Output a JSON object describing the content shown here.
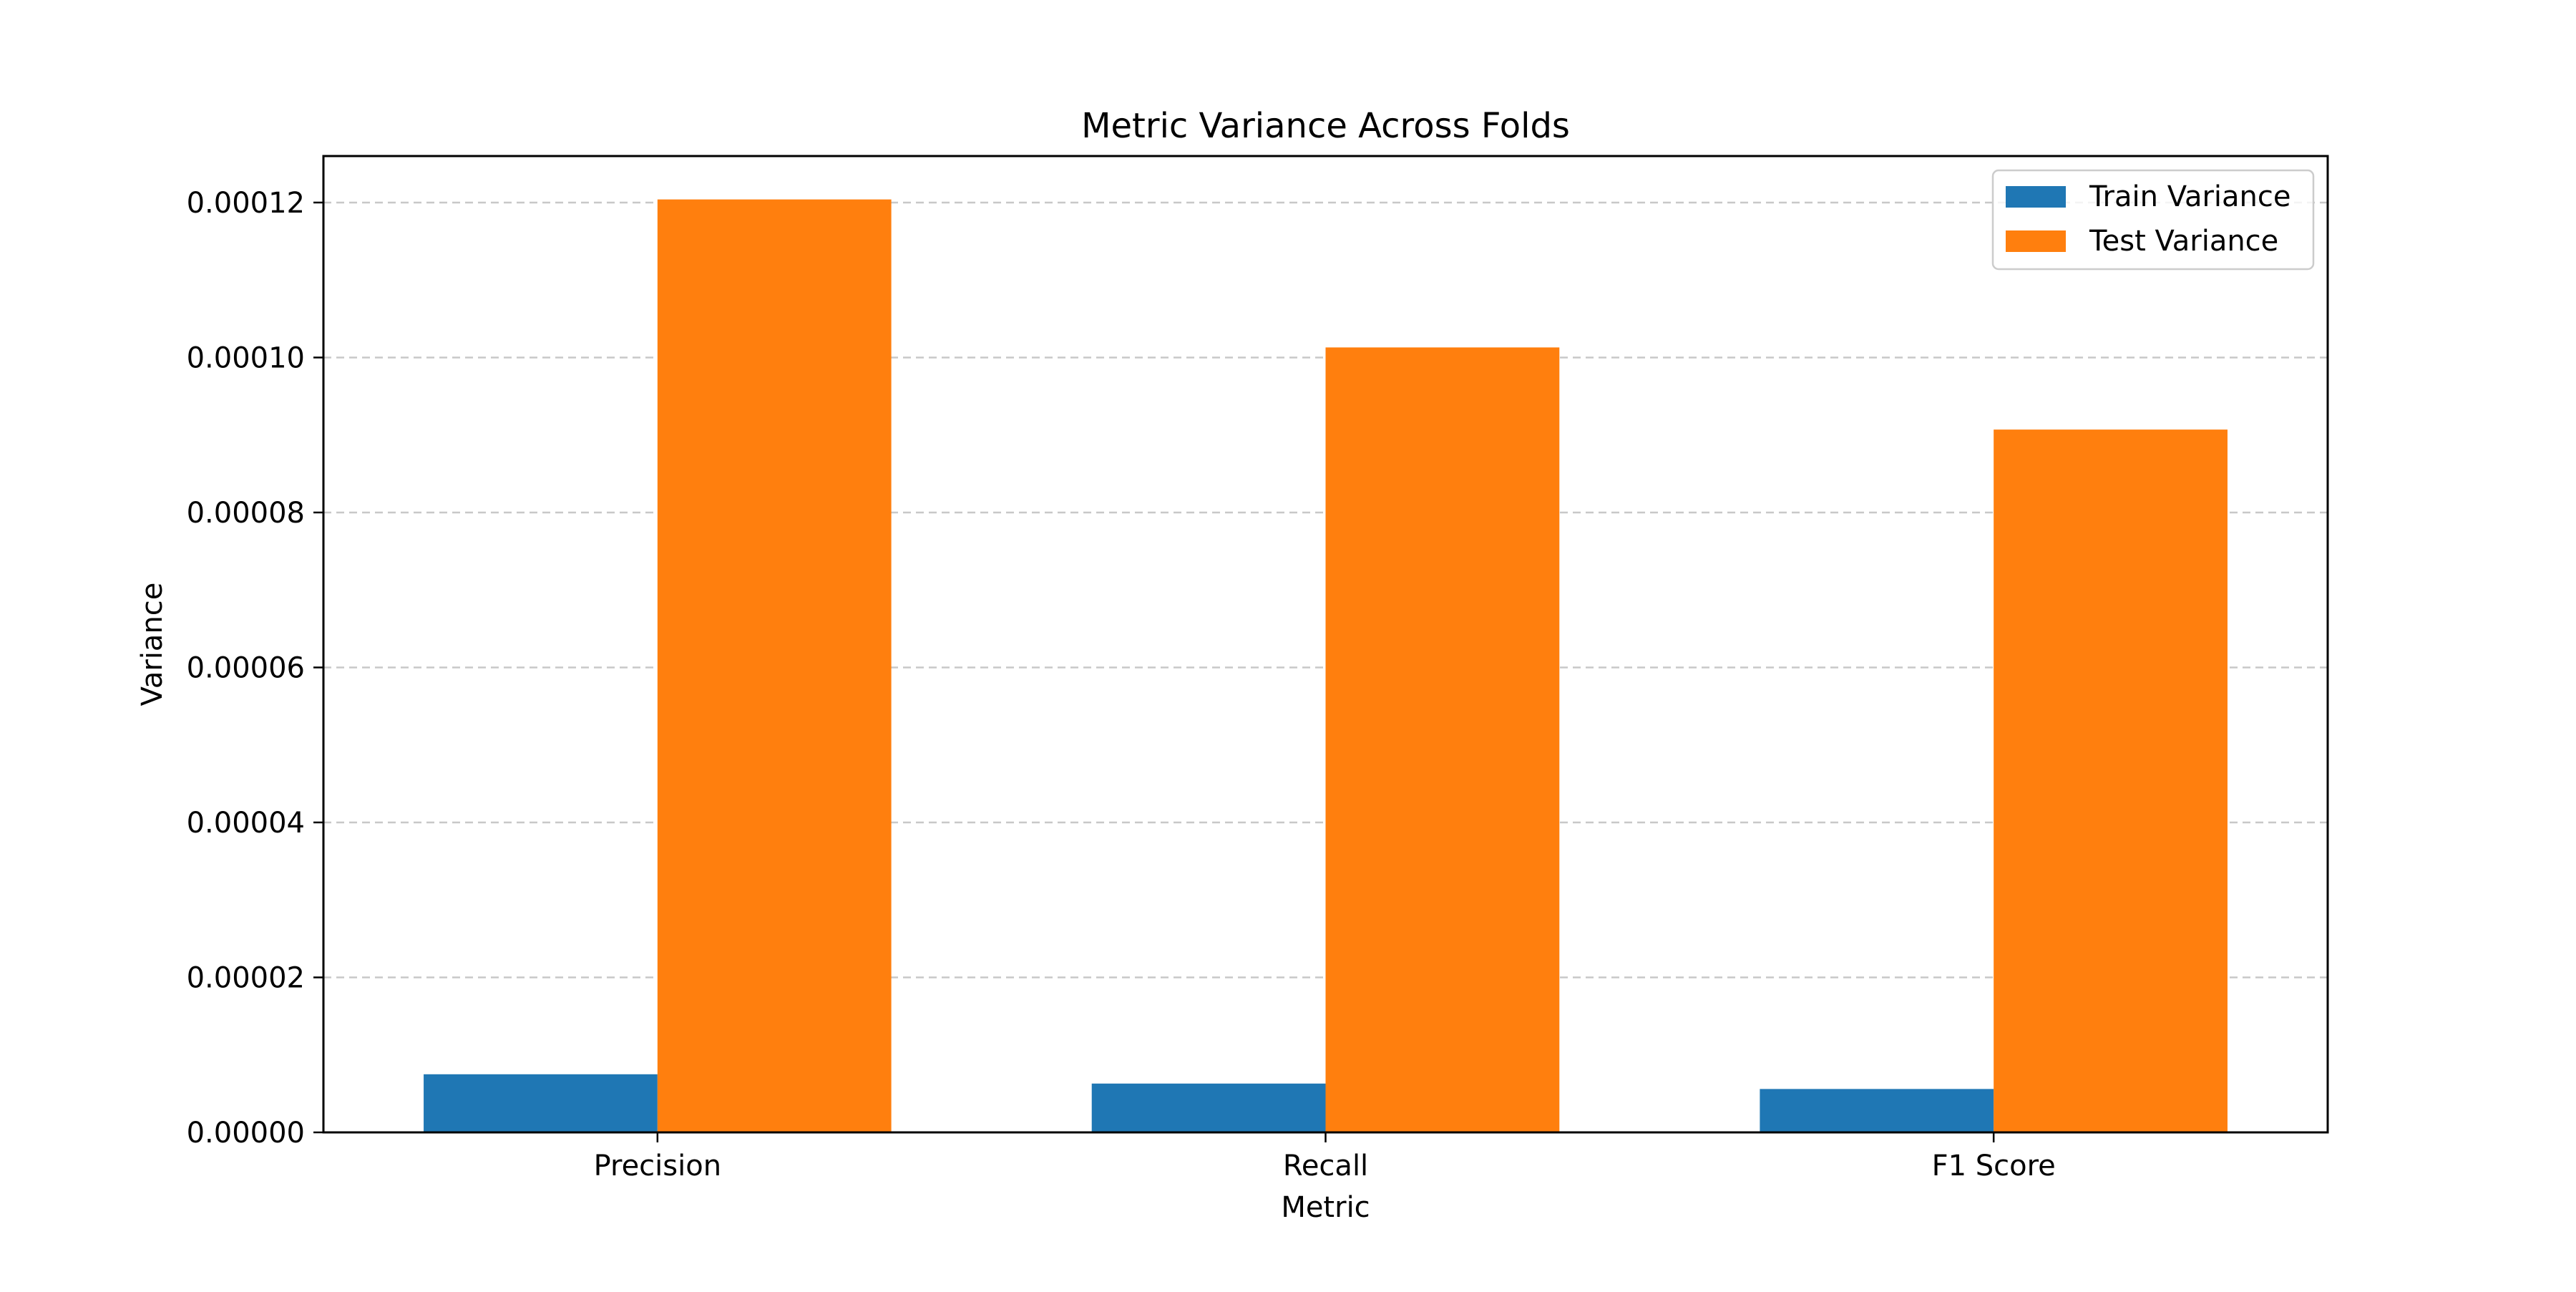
{
  "chart_data": {
    "type": "bar",
    "title": "Metric Variance Across Folds",
    "xlabel": "Metric",
    "ylabel": "Variance",
    "categories": [
      "Precision",
      "Recall",
      "F1 Score"
    ],
    "series": [
      {
        "name": "Train Variance",
        "color": "#1f77b4",
        "values": [
          7.5e-06,
          6.3e-06,
          5.6e-06
        ]
      },
      {
        "name": "Test Variance",
        "color": "#ff7f0e",
        "values": [
          0.0001204,
          0.0001013,
          9.07e-05
        ]
      }
    ],
    "ylim": [
      0,
      0.000126
    ],
    "yticks": [
      0,
      2e-05,
      4e-05,
      6e-05,
      8e-05,
      0.0001,
      0.00012
    ],
    "ytick_labels": [
      "0.00000",
      "0.00002",
      "0.00004",
      "0.00006",
      "0.00008",
      "0.00010",
      "0.00012"
    ],
    "grid": {
      "axis": "y",
      "style": "dashed",
      "color": "#c8c8c8"
    },
    "legend": {
      "placement": "top-right"
    }
  }
}
